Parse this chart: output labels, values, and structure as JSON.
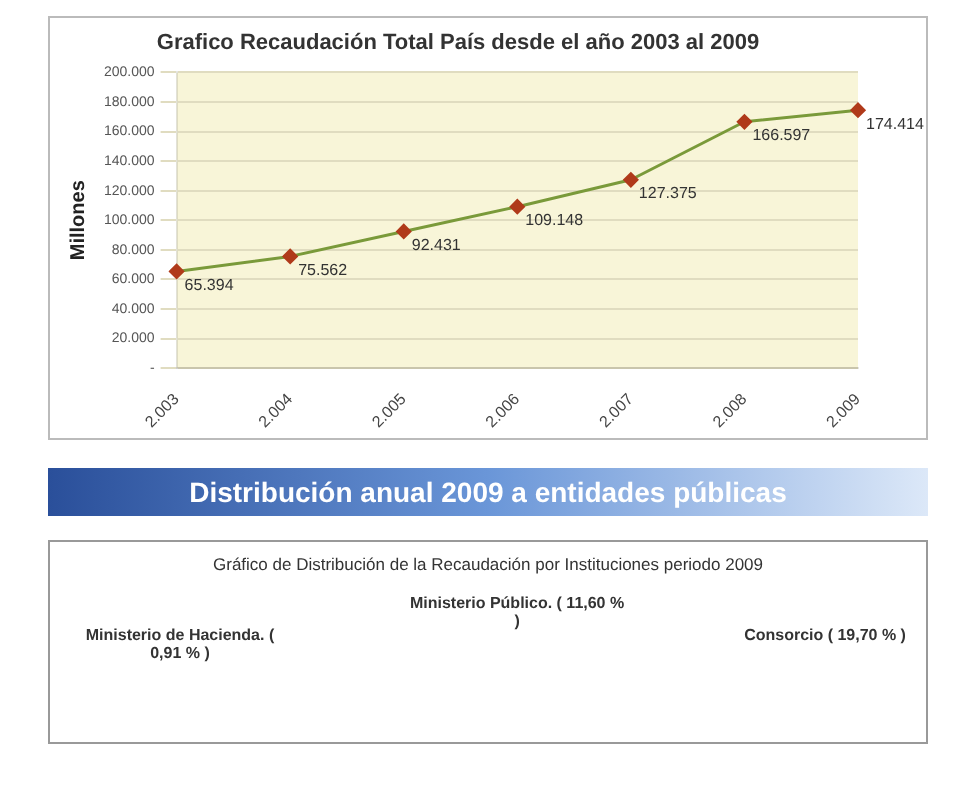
{
  "chart_data": [
    {
      "type": "line",
      "title": "Grafico Recaudación Total País desde el año 2003 al 2009",
      "ylabel": "Millones",
      "categories": [
        "2.003",
        "2.004",
        "2.005",
        "2.006",
        "2.007",
        "2.008",
        "2.009"
      ],
      "series": [
        {
          "color": "#7a9a3a",
          "values": [
            65394,
            75562,
            92431,
            109148,
            127375,
            166597,
            174414
          ],
          "value_labels": [
            "65.394",
            "75.562",
            "92.431",
            "109.148",
            "127.375",
            "166.597",
            "174.414"
          ]
        }
      ],
      "ylim": [
        0,
        200000
      ],
      "yticks": [
        {
          "value": 0,
          "label": "-"
        },
        {
          "value": 20000,
          "label": "20.000"
        },
        {
          "value": 40000,
          "label": "40.000"
        },
        {
          "value": 60000,
          "label": "60.000"
        },
        {
          "value": 80000,
          "label": "80.000"
        },
        {
          "value": 100000,
          "label": "100.000"
        },
        {
          "value": 120000,
          "label": "120.000"
        },
        {
          "value": 140000,
          "label": "140.000"
        },
        {
          "value": 160000,
          "label": "160.000"
        },
        {
          "value": 180000,
          "label": "180.000"
        },
        {
          "value": 200000,
          "label": "200.000"
        }
      ],
      "grid": "y",
      "marker": "diamond",
      "line_style": "solid"
    },
    {
      "type": "other",
      "title": "Distribución anual 2009 a entidades públicas",
      "subtitle": "Gráfico de Distribución de la Recaudación por Instituciones periodo 2009",
      "annotations": [
        "Ministerio de Hacienda. ( 0,91 % )",
        "Ministerio Público. ( 11,60 % )",
        "Consorcio ( 19,70 % )"
      ]
    }
  ]
}
